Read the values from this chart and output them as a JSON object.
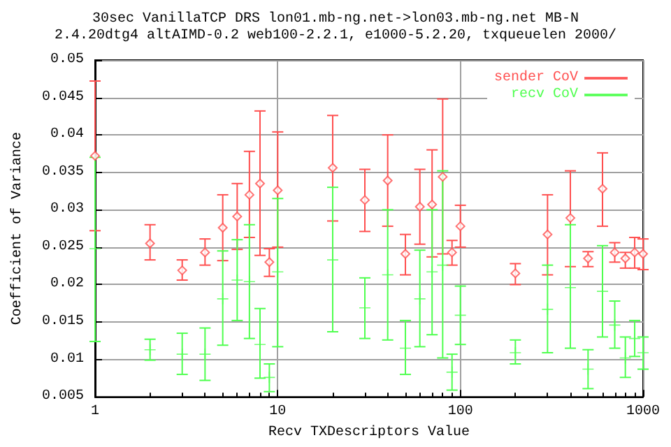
{
  "chart_data": {
    "type": "scatter",
    "title": "30sec VanillaTCP DRS lon01.mb-ng.net->lon03.mb-ng.net MB-N",
    "subtitle": "2.4.20dtg4 altAIMD-0.2 web100-2.2.1, e1000-5.2.20, txqueuelen 2000/",
    "xlabel": "Recv TXDescriptors Value",
    "ylabel": "Coefficient of Variance",
    "x": [
      1,
      2,
      3,
      4,
      5,
      6,
      7,
      8,
      9,
      10,
      20,
      30,
      40,
      50,
      60,
      70,
      80,
      90,
      100,
      200,
      300,
      400,
      500,
      600,
      700,
      800,
      900,
      1000
    ],
    "series": [
      {
        "name": "sender CoV",
        "color": "#ff4f4f",
        "marker": "diamond",
        "values": [
          0.0372,
          0.0255,
          0.0219,
          0.0243,
          0.0276,
          0.0291,
          0.032,
          0.0335,
          0.023,
          0.0326,
          0.0356,
          0.0313,
          0.0339,
          0.0241,
          0.0304,
          0.0307,
          0.0344,
          0.0243,
          0.0278,
          0.0215,
          0.0267,
          0.0289,
          0.0235,
          0.0328,
          0.0243,
          0.0235,
          0.0243,
          0.0241
        ],
        "errors": [
          [
            0.0272,
            0.0472
          ],
          [
            0.0233,
            0.028
          ],
          [
            0.0206,
            0.0233
          ],
          [
            0.0226,
            0.0261
          ],
          [
            0.0232,
            0.032
          ],
          [
            0.0247,
            0.0335
          ],
          [
            0.0263,
            0.0378
          ],
          [
            0.0239,
            0.0432
          ],
          [
            0.0211,
            0.0248
          ],
          [
            0.025,
            0.0404
          ],
          [
            0.0285,
            0.0426
          ],
          [
            0.0271,
            0.0354
          ],
          [
            0.0278,
            0.04
          ],
          [
            0.0213,
            0.0267
          ],
          [
            0.0254,
            0.0354
          ],
          [
            0.0237,
            0.038
          ],
          [
            0.0241,
            0.0448
          ],
          [
            0.0226,
            0.0259
          ],
          [
            0.025,
            0.0306
          ],
          [
            0.02,
            0.0228
          ],
          [
            0.0213,
            0.032
          ],
          [
            0.0224,
            0.0352
          ],
          [
            0.0224,
            0.0244
          ],
          [
            0.0278,
            0.0376
          ],
          [
            0.023,
            0.0256
          ],
          [
            0.0222,
            0.0243
          ],
          [
            0.0222,
            0.0263
          ],
          [
            0.022,
            0.0261
          ]
        ]
      },
      {
        "name": "recv CoV",
        "color": "#4fff4f",
        "marker": "cross",
        "values": [
          0.0248,
          0.0113,
          0.0107,
          0.0107,
          0.0181,
          0.0206,
          0.0204,
          0.012,
          0.0076,
          0.0217,
          0.0233,
          0.0169,
          0.0213,
          0.0115,
          0.0181,
          0.0217,
          0.0226,
          0.0083,
          0.0159,
          0.0109,
          0.0167,
          0.0196,
          0.0087,
          0.0191,
          0.0146,
          0.0102,
          0.0128,
          0.0109
        ],
        "errors": [
          [
            0.0124,
            0.037
          ],
          [
            0.0099,
            0.0127
          ],
          [
            0.008,
            0.0135
          ],
          [
            0.0072,
            0.0142
          ],
          [
            0.0119,
            0.0245
          ],
          [
            0.0152,
            0.026
          ],
          [
            0.0128,
            0.028
          ],
          [
            0.0075,
            0.0168
          ],
          [
            0.0057,
            0.0094
          ],
          [
            0.0117,
            0.0315
          ],
          [
            0.0137,
            0.033
          ],
          [
            0.0128,
            0.0209
          ],
          [
            0.0126,
            0.03
          ],
          [
            0.008,
            0.0152
          ],
          [
            0.0117,
            0.0246
          ],
          [
            0.0133,
            0.03
          ],
          [
            0.0102,
            0.0352
          ],
          [
            0.0059,
            0.0107
          ],
          [
            0.012,
            0.0198
          ],
          [
            0.0094,
            0.0126
          ],
          [
            0.0109,
            0.0226
          ],
          [
            0.0115,
            0.028
          ],
          [
            0.0061,
            0.0113
          ],
          [
            0.013,
            0.0252
          ],
          [
            0.0115,
            0.0178
          ],
          [
            0.0076,
            0.013
          ],
          [
            0.0104,
            0.0152
          ],
          [
            0.0087,
            0.013
          ]
        ]
      }
    ],
    "log": "x",
    "xlim": [
      1,
      1000
    ],
    "xticks": [
      1,
      10,
      100,
      1000
    ],
    "ylim": [
      0.005,
      0.05
    ],
    "yticks": [
      0.005,
      0.01,
      0.015,
      0.02,
      0.025,
      0.03,
      0.035,
      0.04,
      0.045,
      0.05
    ],
    "grid": true,
    "legend": "top right"
  }
}
